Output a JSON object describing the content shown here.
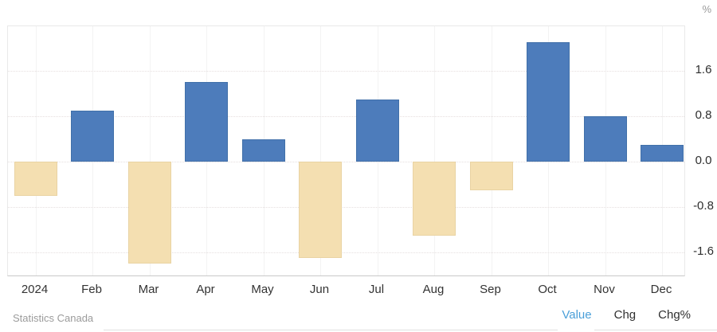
{
  "chart_data": {
    "type": "bar",
    "title": "",
    "unit_label": "%",
    "categories": [
      "2024",
      "Feb",
      "Mar",
      "Apr",
      "May",
      "Jun",
      "Jul",
      "Aug",
      "Sep",
      "Oct",
      "Nov",
      "Dec"
    ],
    "values": [
      -0.6,
      0.9,
      -1.8,
      1.4,
      0.4,
      -1.7,
      1.1,
      -1.3,
      -0.5,
      2.1,
      0.8,
      0.3
    ],
    "xlabel": "",
    "ylabel": "%",
    "y_ticks": [
      "1.6",
      "0.8",
      "0.0",
      "-0.8",
      "-1.6"
    ],
    "ylim": [
      -2.04,
      2.39
    ],
    "grid": true,
    "legend": "none",
    "colors": {
      "positive_fill": "#4d7cbb",
      "positive_border": "#4170a9",
      "negative_fill": "#f4dfb1",
      "negative_border": "#e9d3a3"
    }
  },
  "footer": {
    "source": "Statistics Canada",
    "active_link_color": "#4a9fd9",
    "links": [
      {
        "label": "Value",
        "active": true
      },
      {
        "label": "Chg",
        "active": false
      },
      {
        "label": "Chg%",
        "active": false
      }
    ]
  }
}
